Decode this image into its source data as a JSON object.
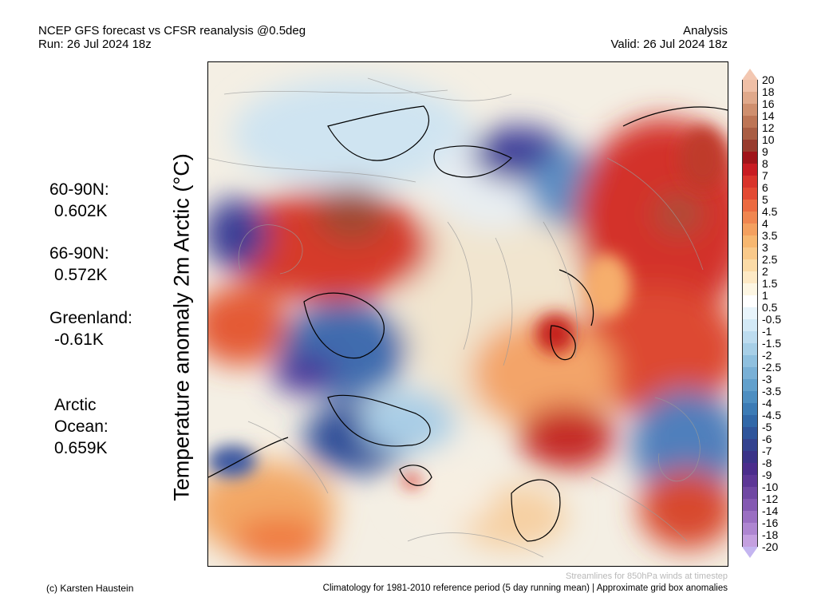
{
  "header": {
    "title": "NCEP GFS forecast vs CFSR reanalysis @0.5deg",
    "run": "Run: 26 Jul 2024 18z",
    "mode": "Analysis",
    "valid": "Valid: 26 Jul 2024 18z"
  },
  "ylabel": "Temperature anomaly 2m Arctic (°C)",
  "stats": [
    {
      "name": "60-90N:",
      "value": "0.602K"
    },
    {
      "name": "66-90N:",
      "value": "0.572K"
    },
    {
      "name": "Greenland:",
      "value": "-0.61K"
    },
    {
      "name": "Arctic\nOcean:",
      "value": "0.659K"
    }
  ],
  "colorbar": {
    "labels": [
      "20",
      "18",
      "16",
      "14",
      "12",
      "10",
      "9",
      "8",
      "7",
      "6",
      "5",
      "4.5",
      "4",
      "3.5",
      "3",
      "2.5",
      "2",
      "1.5",
      "1",
      "0.5",
      "-0.5",
      "-1",
      "-1.5",
      "-2",
      "-2.5",
      "-3",
      "-3.5",
      "-4",
      "-4.5",
      "-5",
      "-6",
      "-7",
      "-8",
      "-9",
      "-10",
      "-12",
      "-14",
      "-16",
      "-18",
      "-20"
    ],
    "colors": [
      "#efbfa6",
      "#e0a98b",
      "#cf8f6e",
      "#bd7555",
      "#a95d43",
      "#983c2e",
      "#a01419",
      "#c81c22",
      "#d9342b",
      "#e34a33",
      "#ec6a40",
      "#f08650",
      "#f4a05f",
      "#f7b770",
      "#f9c98a",
      "#fbdba7",
      "#fde9c5",
      "#fdf6e3",
      "#ffffff",
      "#e8f4fb",
      "#d3e9f6",
      "#bddcef",
      "#a7cfe7",
      "#8fc0df",
      "#79b0d6",
      "#62a0cc",
      "#4d8ec1",
      "#3c7bb5",
      "#3168a8",
      "#2f559b",
      "#34438f",
      "#3a3388",
      "#4b2d8c",
      "#5d3796",
      "#7048a3",
      "#8459b2",
      "#9a6fc2",
      "#ae86d1",
      "#c4a0e0"
    ],
    "over_color": "#f3c7b1",
    "under_color": "#c4b5f0"
  },
  "footer": {
    "credit": "(c) Karsten Haustein",
    "streamlines": "Streamlines for 850hPa winds at timestep",
    "climatology": "Climatology for 1981-2010 reference period (5 day running mean) | Approximate grid box anomalies"
  }
}
